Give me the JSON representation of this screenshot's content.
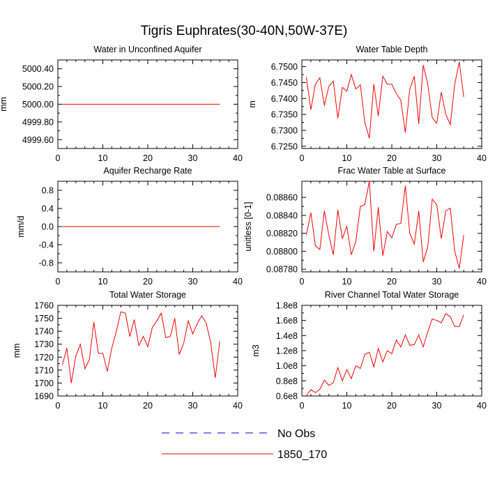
{
  "figure": {
    "title": "Tigris Euphrates(30-40N,50W-37E)"
  },
  "legend": {
    "items": [
      {
        "label": "No Obs",
        "style": "dashed",
        "color": "#0000cc"
      },
      {
        "label": "1850_170",
        "style": "solid",
        "color": "#ff0000"
      }
    ]
  },
  "chart_data": [
    {
      "type": "line",
      "title": "Water in Unconfined Aquifer",
      "ylabel": "mm",
      "xlim": [
        0,
        40
      ],
      "xticks": [
        0,
        10,
        20,
        30,
        40
      ],
      "ylim": [
        4999.5,
        5000.5
      ],
      "yticks": [
        4999.6,
        4999.8,
        5000.0,
        5000.2,
        5000.4
      ],
      "ytick_labels": [
        "4999.60",
        "4999.80",
        "5000.00",
        "5000.20",
        "5000.40"
      ],
      "series": [
        {
          "name": "1850_170",
          "color": "#ff0000",
          "x": [
            1,
            2,
            3,
            4,
            5,
            6,
            7,
            8,
            9,
            10,
            11,
            12,
            13,
            14,
            15,
            16,
            17,
            18,
            19,
            20,
            21,
            22,
            23,
            24,
            25,
            26,
            27,
            28,
            29,
            30,
            31,
            32,
            33,
            34,
            35,
            36
          ],
          "values": [
            5000,
            5000,
            5000,
            5000,
            5000,
            5000,
            5000,
            5000,
            5000,
            5000,
            5000,
            5000,
            5000,
            5000,
            5000,
            5000,
            5000,
            5000,
            5000,
            5000,
            5000,
            5000,
            5000,
            5000,
            5000,
            5000,
            5000,
            5000,
            5000,
            5000,
            5000,
            5000,
            5000,
            5000,
            5000,
            5000
          ]
        }
      ]
    },
    {
      "type": "line",
      "title": "Water Table Depth",
      "ylabel": "m",
      "xlim": [
        0,
        40
      ],
      "xticks": [
        0,
        10,
        20,
        30,
        40
      ],
      "ylim": [
        6.7243,
        6.7521
      ],
      "yticks": [
        6.725,
        6.73,
        6.735,
        6.74,
        6.745,
        6.75
      ],
      "ytick_labels": [
        "6.7250",
        "6.7300",
        "6.7350",
        "6.7400",
        "6.7450",
        "6.7500"
      ],
      "series": [
        {
          "name": "1850_170",
          "color": "#ff0000",
          "x": [
            1,
            2,
            3,
            4,
            5,
            6,
            7,
            8,
            9,
            10,
            11,
            12,
            13,
            14,
            15,
            16,
            17,
            18,
            19,
            20,
            21,
            22,
            23,
            24,
            25,
            26,
            27,
            28,
            29,
            30,
            31,
            32,
            33,
            34,
            35,
            36
          ],
          "values": [
            6.7467,
            6.7365,
            6.7445,
            6.7465,
            6.7378,
            6.7438,
            6.7455,
            6.7338,
            6.7435,
            6.7423,
            6.7475,
            6.743,
            6.7443,
            6.7325,
            6.7275,
            6.7445,
            6.7345,
            6.747,
            6.7445,
            6.7445,
            6.7415,
            6.7395,
            6.7293,
            6.743,
            6.747,
            6.732,
            6.7505,
            6.7445,
            6.734,
            6.7322,
            6.742,
            6.735,
            6.7318,
            6.7445,
            6.7515,
            6.7405
          ]
        }
      ]
    },
    {
      "type": "line",
      "title": "Aquifer Recharge Rate",
      "ylabel": "mm/d",
      "xlim": [
        0,
        40
      ],
      "xticks": [
        0,
        10,
        20,
        30,
        40
      ],
      "ylim": [
        -1.0,
        1.0
      ],
      "yticks": [
        -0.8,
        -0.4,
        0.0,
        0.4,
        0.8
      ],
      "ytick_labels": [
        "-0.8",
        "-0.4",
        "0.0",
        "0.4",
        "0.8"
      ],
      "series": [
        {
          "name": "1850_170",
          "color": "#ff0000",
          "x": [
            1,
            2,
            3,
            4,
            5,
            6,
            7,
            8,
            9,
            10,
            11,
            12,
            13,
            14,
            15,
            16,
            17,
            18,
            19,
            20,
            21,
            22,
            23,
            24,
            25,
            26,
            27,
            28,
            29,
            30,
            31,
            32,
            33,
            34,
            35,
            36
          ],
          "values": [
            0,
            0,
            0,
            0,
            0,
            0,
            0,
            0,
            0,
            0,
            0,
            0,
            0,
            0,
            0,
            0,
            0,
            0,
            0,
            0,
            0,
            0,
            0,
            0,
            0,
            0,
            0,
            0,
            0,
            0,
            0,
            0,
            0,
            0,
            0,
            0
          ]
        }
      ]
    },
    {
      "type": "line",
      "title": "Frac Water Table at Surface",
      "ylabel": "unitless [0-1]",
      "xlim": [
        0,
        40
      ],
      "xticks": [
        0,
        10,
        20,
        30,
        40
      ],
      "ylim": [
        0.08777,
        0.08878
      ],
      "yticks": [
        0.0878,
        0.088,
        0.0882,
        0.0884,
        0.0886
      ],
      "ytick_labels": [
        "0.08780",
        "0.08800",
        "0.08820",
        "0.08840",
        "0.08860"
      ],
      "series": [
        {
          "name": "1850_170",
          "color": "#ff0000",
          "x": [
            1,
            2,
            3,
            4,
            5,
            6,
            7,
            8,
            9,
            10,
            11,
            12,
            13,
            14,
            15,
            16,
            17,
            18,
            19,
            20,
            21,
            22,
            23,
            24,
            25,
            26,
            27,
            28,
            29,
            30,
            31,
            32,
            33,
            34,
            35,
            36
          ],
          "values": [
            0.08818,
            0.08843,
            0.08806,
            0.08802,
            0.08845,
            0.08818,
            0.08796,
            0.08846,
            0.08814,
            0.08828,
            0.08796,
            0.08811,
            0.0885,
            0.08852,
            0.08878,
            0.088,
            0.08849,
            0.08795,
            0.08822,
            0.08815,
            0.0883,
            0.08831,
            0.08873,
            0.0882,
            0.08808,
            0.08845,
            0.08788,
            0.08805,
            0.08858,
            0.08852,
            0.08814,
            0.08845,
            0.08848,
            0.088,
            0.08781,
            0.08818
          ]
        }
      ]
    },
    {
      "type": "line",
      "title": "Total Water Storage",
      "ylabel": "mm",
      "xlim": [
        0,
        40
      ],
      "xticks": [
        0,
        10,
        20,
        30,
        40
      ],
      "ylim": [
        1690,
        1760
      ],
      "yticks": [
        1690,
        1700,
        1710,
        1720,
        1730,
        1740,
        1750,
        1760
      ],
      "ytick_labels": [
        "1690",
        "1700",
        "1710",
        "1720",
        "1730",
        "1740",
        "1750",
        "1760"
      ],
      "series": [
        {
          "name": "1850_170",
          "color": "#ff0000",
          "x": [
            1,
            2,
            3,
            4,
            5,
            6,
            7,
            8,
            9,
            10,
            11,
            12,
            13,
            14,
            15,
            16,
            17,
            18,
            19,
            20,
            21,
            22,
            23,
            24,
            25,
            26,
            27,
            28,
            29,
            30,
            31,
            32,
            33,
            34,
            35,
            36
          ],
          "values": [
            1714,
            1727,
            1700,
            1721,
            1730,
            1711,
            1718,
            1747,
            1723,
            1723,
            1709,
            1727,
            1740,
            1755,
            1754,
            1736,
            1749,
            1729,
            1736,
            1728,
            1743,
            1748,
            1754,
            1735,
            1736,
            1750,
            1722,
            1731,
            1748,
            1738,
            1746,
            1752,
            1746,
            1731,
            1704,
            1732
          ]
        }
      ]
    },
    {
      "type": "line",
      "title": "River Channel Total Water Storage",
      "ylabel": "m3",
      "xlim": [
        0,
        40
      ],
      "xticks": [
        0,
        10,
        20,
        30,
        40
      ],
      "ylim": [
        60000000,
        180000000
      ],
      "yticks": [
        60000000,
        80000000,
        100000000,
        120000000,
        140000000,
        160000000,
        180000000
      ],
      "ytick_labels": [
        "0.6e8",
        "0.8e8",
        "1.0e8",
        "1.2e8",
        "1.4e8",
        "1.6e8",
        "1.8e8"
      ],
      "series": [
        {
          "name": "1850_170",
          "color": "#ff0000",
          "x": [
            1,
            2,
            3,
            4,
            5,
            6,
            7,
            8,
            9,
            10,
            11,
            12,
            13,
            14,
            15,
            16,
            17,
            18,
            19,
            20,
            21,
            22,
            23,
            24,
            25,
            26,
            27,
            28,
            29,
            30,
            31,
            32,
            33,
            34,
            35,
            36
          ],
          "values": [
            60500000,
            68500000,
            64500000,
            69000000,
            81000000,
            74000000,
            77500000,
            97500000,
            80000000,
            95000000,
            83000000,
            100000000,
            96500000,
            115000000,
            118000000,
            98500000,
            123000000,
            105000000,
            120000000,
            116000000,
            134000000,
            125000000,
            141000000,
            127000000,
            128000000,
            141000000,
            125000000,
            145000000,
            162000000,
            160000000,
            157000000,
            169000000,
            165000000,
            152000000,
            152000000,
            167500000
          ]
        }
      ]
    }
  ]
}
